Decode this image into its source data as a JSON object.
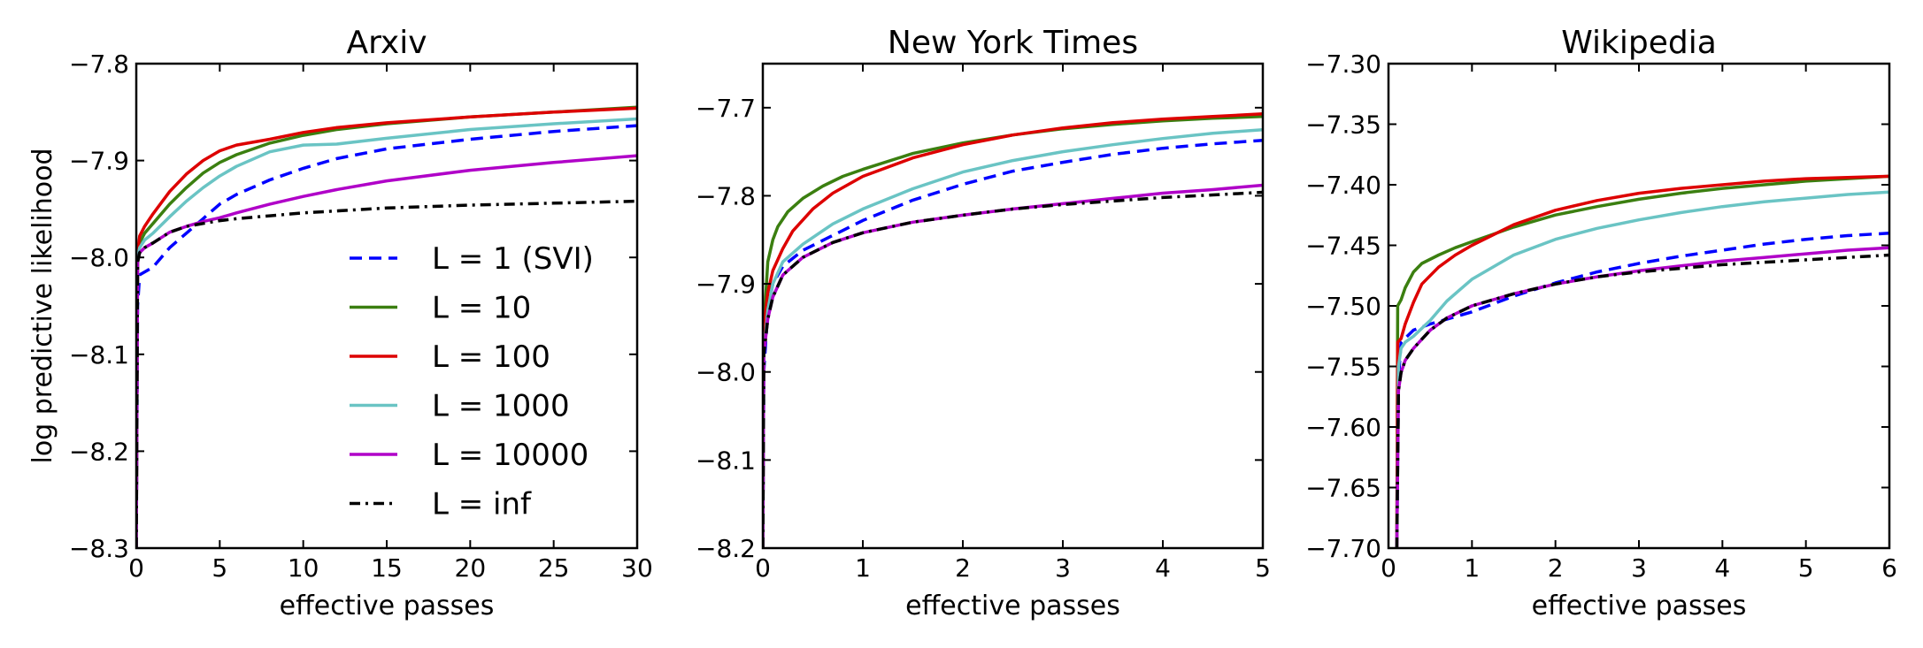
{
  "chart_data": [
    {
      "type": "line",
      "title": "Arxiv",
      "xlabel": "effective passes",
      "ylabel": "log predictive likelihood",
      "xlim": [
        0,
        30
      ],
      "ylim": [
        -8.3,
        -7.8
      ],
      "xticks": [
        0,
        5,
        10,
        15,
        20,
        25,
        30
      ],
      "xtick_labels": [
        "0",
        "5",
        "10",
        "15",
        "20",
        "25",
        "30"
      ],
      "yticks": [
        -8.3,
        -8.2,
        -8.1,
        -8.0,
        -7.9,
        -7.8
      ],
      "ytick_labels": [
        "−8.3",
        "−8.2",
        "−8.1",
        "−8.0",
        "−7.9",
        "−7.8"
      ],
      "legend": {
        "placement": "lower-right"
      },
      "series": [
        {
          "name": "L = 1 (SVI)",
          "color": "#0000ff",
          "dash": "dashed",
          "x": [
            0,
            0.08,
            0.2,
            1,
            2,
            3,
            4,
            5,
            6,
            8,
            10,
            12,
            15,
            20,
            25,
            30
          ],
          "y": [
            -8.3,
            -8.05,
            -8.018,
            -8.01,
            -7.99,
            -7.975,
            -7.96,
            -7.945,
            -7.935,
            -7.92,
            -7.908,
            -7.898,
            -7.888,
            -7.878,
            -7.87,
            -7.864
          ]
        },
        {
          "name": "L = 10",
          "color": "#3b7f10",
          "dash": "solid",
          "x": [
            0,
            0.08,
            0.2,
            0.5,
            1,
            2,
            3,
            4,
            5,
            6,
            8,
            10,
            12,
            15,
            20,
            25,
            30
          ],
          "y": [
            -8.3,
            -8.0,
            -7.985,
            -7.975,
            -7.965,
            -7.945,
            -7.928,
            -7.913,
            -7.902,
            -7.894,
            -7.882,
            -7.874,
            -7.868,
            -7.862,
            -7.855,
            -7.85,
            -7.845
          ]
        },
        {
          "name": "L = 100",
          "color": "#dd0000",
          "dash": "solid",
          "x": [
            0,
            0.08,
            0.2,
            0.5,
            1,
            2,
            3,
            4,
            5,
            6,
            8,
            10,
            12,
            15,
            20,
            25,
            30
          ],
          "y": [
            -8.3,
            -7.995,
            -7.978,
            -7.968,
            -7.955,
            -7.932,
            -7.914,
            -7.9,
            -7.89,
            -7.884,
            -7.878,
            -7.871,
            -7.866,
            -7.861,
            -7.855,
            -7.85,
            -7.846
          ]
        },
        {
          "name": "L = 1000",
          "color": "#6ac4c4",
          "dash": "solid",
          "x": [
            0,
            0.08,
            0.2,
            0.5,
            1,
            2,
            3,
            4,
            5,
            6,
            8,
            10,
            12,
            15,
            20,
            25,
            30
          ],
          "y": [
            -8.3,
            -8.0,
            -7.99,
            -7.982,
            -7.975,
            -7.958,
            -7.942,
            -7.928,
            -7.916,
            -7.906,
            -7.891,
            -7.884,
            -7.883,
            -7.877,
            -7.868,
            -7.862,
            -7.857
          ]
        },
        {
          "name": "L = 10000",
          "color": "#b000c8",
          "dash": "solid",
          "x": [
            0,
            0.08,
            0.2,
            0.5,
            1,
            2,
            3,
            4,
            5,
            6,
            8,
            10,
            12,
            15,
            20,
            25,
            30
          ],
          "y": [
            -8.3,
            -8.005,
            -7.995,
            -7.99,
            -7.985,
            -7.974,
            -7.968,
            -7.963,
            -7.959,
            -7.954,
            -7.945,
            -7.937,
            -7.93,
            -7.921,
            -7.91,
            -7.902,
            -7.895
          ]
        },
        {
          "name": "L = inf",
          "color": "#000000",
          "dash": "dashdot",
          "x": [
            0,
            0.08,
            0.2,
            0.5,
            1,
            2,
            3,
            4,
            5,
            6,
            8,
            10,
            12,
            15,
            20,
            25,
            30
          ],
          "y": [
            -8.3,
            -8.005,
            -7.995,
            -7.99,
            -7.985,
            -7.974,
            -7.968,
            -7.965,
            -7.962,
            -7.96,
            -7.957,
            -7.954,
            -7.952,
            -7.949,
            -7.946,
            -7.944,
            -7.942
          ]
        }
      ]
    },
    {
      "type": "line",
      "title": "New York Times",
      "xlabel": "effective passes",
      "ylabel": "",
      "xlim": [
        0,
        5
      ],
      "ylim": [
        -8.2,
        -7.65
      ],
      "xticks": [
        0,
        1,
        2,
        3,
        4,
        5
      ],
      "xtick_labels": [
        "0",
        "1",
        "2",
        "3",
        "4",
        "5"
      ],
      "yticks": [
        -8.2,
        -8.1,
        -8.0,
        -7.9,
        -7.8,
        -7.7
      ],
      "ytick_labels": [
        "−8.2",
        "−8.1",
        "−8.0",
        "−7.9",
        "−7.8",
        "−7.7"
      ],
      "series": [
        {
          "name": "L = 1 (SVI)",
          "color": "#0000ff",
          "dash": "dashed",
          "x": [
            0,
            0.01,
            0.05,
            0.1,
            0.2,
            0.4,
            0.7,
            1,
            1.5,
            2,
            2.5,
            3,
            3.5,
            4,
            4.5,
            5
          ],
          "y": [
            -8.2,
            -8.0,
            -7.93,
            -7.9,
            -7.88,
            -7.862,
            -7.845,
            -7.828,
            -7.805,
            -7.787,
            -7.772,
            -7.762,
            -7.753,
            -7.746,
            -7.741,
            -7.737
          ]
        },
        {
          "name": "L = 10",
          "color": "#3b7f10",
          "dash": "solid",
          "x": [
            0,
            0.01,
            0.05,
            0.1,
            0.15,
            0.25,
            0.4,
            0.6,
            0.8,
            1,
            1.5,
            2,
            2.5,
            3,
            3.5,
            4,
            4.5,
            5
          ],
          "y": [
            -8.2,
            -7.95,
            -7.875,
            -7.85,
            -7.835,
            -7.818,
            -7.803,
            -7.789,
            -7.778,
            -7.77,
            -7.752,
            -7.74,
            -7.731,
            -7.724,
            -7.719,
            -7.715,
            -7.712,
            -7.71
          ]
        },
        {
          "name": "L = 100",
          "color": "#dd0000",
          "dash": "solid",
          "x": [
            0,
            0.01,
            0.05,
            0.1,
            0.2,
            0.3,
            0.5,
            0.7,
            1,
            1.5,
            2,
            2.5,
            3,
            3.5,
            4,
            4.5,
            5
          ],
          "y": [
            -8.2,
            -7.95,
            -7.91,
            -7.885,
            -7.86,
            -7.84,
            -7.815,
            -7.797,
            -7.778,
            -7.757,
            -7.742,
            -7.731,
            -7.723,
            -7.717,
            -7.713,
            -7.71,
            -7.707
          ]
        },
        {
          "name": "L = 1000",
          "color": "#6ac4c4",
          "dash": "solid",
          "x": [
            0,
            0.01,
            0.05,
            0.1,
            0.2,
            0.4,
            0.7,
            1,
            1.5,
            2,
            2.5,
            3,
            3.5,
            4,
            4.5,
            5
          ],
          "y": [
            -8.2,
            -7.98,
            -7.93,
            -7.9,
            -7.875,
            -7.855,
            -7.832,
            -7.815,
            -7.792,
            -7.773,
            -7.76,
            -7.75,
            -7.742,
            -7.735,
            -7.729,
            -7.725
          ]
        },
        {
          "name": "L = 10000",
          "color": "#b000c8",
          "dash": "solid",
          "x": [
            0,
            0.01,
            0.05,
            0.1,
            0.2,
            0.4,
            0.7,
            1,
            1.5,
            2,
            2.5,
            3,
            3.5,
            4,
            4.5,
            5
          ],
          "y": [
            -8.2,
            -7.98,
            -7.94,
            -7.915,
            -7.89,
            -7.87,
            -7.853,
            -7.842,
            -7.83,
            -7.822,
            -7.815,
            -7.809,
            -7.803,
            -7.797,
            -7.793,
            -7.788
          ]
        },
        {
          "name": "L = inf",
          "color": "#000000",
          "dash": "dashdot",
          "x": [
            0,
            0.01,
            0.05,
            0.1,
            0.2,
            0.4,
            0.7,
            1,
            1.5,
            2,
            2.5,
            3,
            3.5,
            4,
            4.5,
            5
          ],
          "y": [
            -8.2,
            -7.98,
            -7.94,
            -7.915,
            -7.89,
            -7.87,
            -7.853,
            -7.842,
            -7.83,
            -7.822,
            -7.815,
            -7.81,
            -7.806,
            -7.802,
            -7.799,
            -7.796
          ]
        }
      ]
    },
    {
      "type": "line",
      "title": "Wikipedia",
      "xlabel": "effective passes",
      "ylabel": "",
      "xlim": [
        0,
        6
      ],
      "ylim": [
        -7.7,
        -7.3
      ],
      "xticks": [
        0,
        1,
        2,
        3,
        4,
        5,
        6
      ],
      "xtick_labels": [
        "0",
        "1",
        "2",
        "3",
        "4",
        "5",
        "6"
      ],
      "yticks": [
        -7.7,
        -7.65,
        -7.6,
        -7.55,
        -7.5,
        -7.45,
        -7.4,
        -7.35,
        -7.3
      ],
      "ytick_labels": [
        "−7.70",
        "−7.65",
        "−7.60",
        "−7.55",
        "−7.50",
        "−7.45",
        "−7.40",
        "−7.35",
        "−7.30"
      ],
      "series": [
        {
          "name": "L = 1 (SVI)",
          "color": "#0000ff",
          "dash": "dashed",
          "x": [
            0.1,
            0.12,
            0.15,
            0.3,
            0.5,
            1,
            1.5,
            2,
            2.5,
            3,
            3.5,
            4,
            4.5,
            5,
            5.5,
            6
          ],
          "y": [
            -7.7,
            -7.56,
            -7.53,
            -7.52,
            -7.515,
            -7.505,
            -7.492,
            -7.481,
            -7.472,
            -7.465,
            -7.459,
            -7.454,
            -7.449,
            -7.445,
            -7.442,
            -7.44
          ]
        },
        {
          "name": "L = 10",
          "color": "#3b7f10",
          "dash": "solid",
          "x": [
            0.1,
            0.11,
            0.15,
            0.2,
            0.3,
            0.4,
            0.6,
            0.8,
            1,
            1.5,
            2,
            2.5,
            3,
            3.5,
            4,
            4.5,
            5,
            5.5,
            6
          ],
          "y": [
            -7.7,
            -7.5,
            -7.495,
            -7.485,
            -7.472,
            -7.465,
            -7.458,
            -7.452,
            -7.447,
            -7.435,
            -7.425,
            -7.418,
            -7.412,
            -7.407,
            -7.403,
            -7.4,
            -7.397,
            -7.395,
            -7.393
          ]
        },
        {
          "name": "L = 100",
          "color": "#dd0000",
          "dash": "solid",
          "x": [
            0.1,
            0.11,
            0.15,
            0.2,
            0.3,
            0.4,
            0.6,
            0.8,
            1,
            1.5,
            2,
            2.5,
            3,
            3.5,
            4,
            4.5,
            5,
            5.5,
            6
          ],
          "y": [
            -7.7,
            -7.53,
            -7.527,
            -7.515,
            -7.497,
            -7.482,
            -7.468,
            -7.458,
            -7.45,
            -7.433,
            -7.421,
            -7.413,
            -7.407,
            -7.403,
            -7.4,
            -7.397,
            -7.395,
            -7.394,
            -7.393
          ]
        },
        {
          "name": "L = 1000",
          "color": "#6ac4c4",
          "dash": "solid",
          "x": [
            0.1,
            0.12,
            0.15,
            0.2,
            0.3,
            0.5,
            0.7,
            1,
            1.5,
            2,
            2.5,
            3,
            3.5,
            4,
            4.5,
            5,
            5.5,
            6
          ],
          "y": [
            -7.7,
            -7.55,
            -7.535,
            -7.53,
            -7.525,
            -7.512,
            -7.496,
            -7.478,
            -7.458,
            -7.445,
            -7.436,
            -7.429,
            -7.423,
            -7.418,
            -7.414,
            -7.411,
            -7.408,
            -7.406
          ]
        },
        {
          "name": "L = 10000",
          "color": "#b000c8",
          "dash": "solid",
          "x": [
            0.1,
            0.12,
            0.15,
            0.2,
            0.3,
            0.5,
            0.7,
            1,
            1.5,
            2,
            2.5,
            3,
            3.5,
            4,
            4.5,
            5,
            5.5,
            6
          ],
          "y": [
            -7.7,
            -7.57,
            -7.555,
            -7.545,
            -7.535,
            -7.52,
            -7.51,
            -7.5,
            -7.49,
            -7.482,
            -7.476,
            -7.471,
            -7.467,
            -7.463,
            -7.46,
            -7.457,
            -7.454,
            -7.452
          ]
        },
        {
          "name": "L = inf",
          "color": "#000000",
          "dash": "dashdot",
          "x": [
            0.1,
            0.12,
            0.15,
            0.2,
            0.3,
            0.5,
            0.7,
            1,
            1.5,
            2,
            2.5,
            3,
            3.5,
            4,
            4.5,
            5,
            5.5,
            6
          ],
          "y": [
            -7.7,
            -7.57,
            -7.555,
            -7.545,
            -7.535,
            -7.52,
            -7.51,
            -7.5,
            -7.49,
            -7.482,
            -7.476,
            -7.472,
            -7.469,
            -7.466,
            -7.464,
            -7.462,
            -7.46,
            -7.458
          ]
        }
      ]
    }
  ]
}
